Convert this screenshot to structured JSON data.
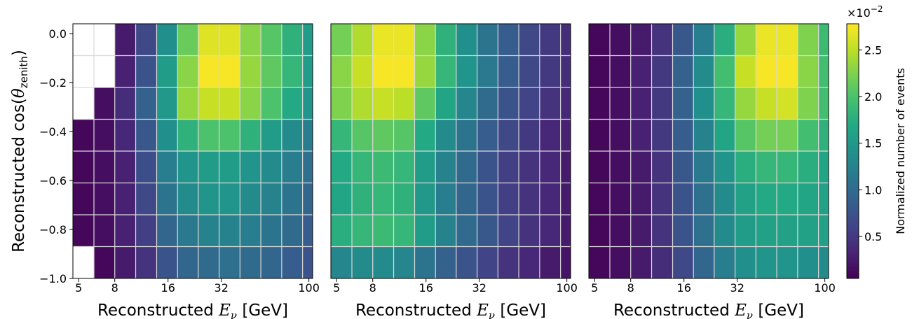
{
  "chart_data": {
    "type": "heatmap",
    "y_axis": {
      "label_prefix": "Reconstructed cos(",
      "label_symbol": "θ",
      "label_sub": "zenith",
      "label_suffix": ")",
      "range": [
        -1.0,
        0.04
      ],
      "ticks": [
        "0.0",
        "−0.2",
        "−0.4",
        "−0.6",
        "−0.8",
        "−1.0"
      ],
      "tick_values": [
        0.0,
        -0.2,
        -0.4,
        -0.6,
        -0.8,
        -1.0
      ],
      "bin_edges": [
        -1.0,
        -0.87,
        -0.74,
        -0.61,
        -0.48,
        -0.35,
        -0.22,
        -0.09,
        0.04
      ]
    },
    "x_axis": {
      "label_prefix": "Reconstructed ",
      "label_symbol": "E",
      "label_sub": "ν",
      "label_suffix": " [GeV]",
      "scale": "log",
      "range": [
        4.64,
        105
      ],
      "ticks": [
        "5",
        "8",
        "16",
        "32",
        "100"
      ],
      "tick_values": [
        5,
        8,
        16,
        32,
        100
      ],
      "bin_edges": [
        4.64,
        6.1,
        8.0,
        10.5,
        13.8,
        18.1,
        23.7,
        31.1,
        40.8,
        53.5,
        70.2,
        92.1,
        105
      ]
    },
    "colorbar": {
      "label": "Normalized number of events",
      "multiplier_base": "×10",
      "multiplier_exp": "−2",
      "ticks": [
        "0.5",
        "1.0",
        "1.5",
        "2.0",
        "2.5"
      ],
      "tick_values": [
        0.5,
        1.0,
        1.5,
        2.0,
        2.5
      ],
      "range": [
        0.05,
        2.78
      ]
    },
    "grid": true,
    "panels": [
      {
        "values": [
          [
            null,
            0.1,
            0.25,
            0.45,
            0.75,
            0.95,
            1.0,
            1.05,
            1.0,
            0.95,
            0.85,
            0.75
          ],
          [
            0.1,
            0.15,
            0.3,
            0.55,
            0.95,
            1.15,
            1.25,
            1.25,
            1.2,
            1.1,
            1.0,
            0.85
          ],
          [
            0.1,
            0.15,
            0.3,
            0.65,
            1.1,
            1.35,
            1.45,
            1.45,
            1.35,
            1.25,
            1.1,
            0.95
          ],
          [
            0.1,
            0.15,
            0.3,
            0.7,
            1.2,
            1.45,
            1.55,
            1.55,
            1.45,
            1.35,
            1.2,
            1.05
          ],
          [
            0.1,
            0.15,
            0.35,
            0.8,
            1.4,
            1.8,
            2.0,
            2.0,
            1.8,
            1.55,
            1.35,
            1.2
          ],
          [
            null,
            0.15,
            0.4,
            0.9,
            1.5,
            2.35,
            2.55,
            2.55,
            2.3,
            2.0,
            1.7,
            1.45
          ],
          [
            null,
            null,
            0.3,
            0.75,
            1.55,
            2.3,
            2.75,
            2.75,
            2.35,
            2.1,
            1.85,
            1.55
          ],
          [
            null,
            null,
            0.25,
            0.65,
            1.4,
            2.15,
            2.65,
            2.65,
            2.3,
            2.05,
            1.8,
            1.55
          ]
        ]
      },
      {
        "values": [
          [
            1.3,
            1.35,
            1.35,
            1.3,
            1.1,
            0.9,
            0.75,
            0.6,
            0.45,
            0.35,
            0.25,
            0.2
          ],
          [
            1.75,
            1.85,
            1.9,
            1.85,
            1.55,
            1.25,
            1.0,
            0.8,
            0.6,
            0.45,
            0.35,
            0.25
          ],
          [
            1.65,
            1.8,
            1.85,
            1.8,
            1.5,
            1.2,
            0.95,
            0.75,
            0.55,
            0.45,
            0.35,
            0.25
          ],
          [
            1.7,
            1.85,
            1.9,
            1.85,
            1.55,
            1.25,
            1.0,
            0.75,
            0.55,
            0.45,
            0.35,
            0.25
          ],
          [
            1.85,
            2.05,
            2.1,
            2.05,
            1.7,
            1.35,
            1.1,
            0.85,
            0.65,
            0.5,
            0.35,
            0.3
          ],
          [
            2.25,
            2.45,
            2.55,
            2.5,
            2.1,
            1.65,
            1.3,
            1.0,
            0.75,
            0.6,
            0.45,
            0.35
          ],
          [
            2.3,
            2.55,
            2.75,
            2.75,
            2.35,
            1.85,
            1.45,
            1.15,
            0.85,
            0.65,
            0.5,
            0.4
          ],
          [
            2.2,
            2.45,
            2.7,
            2.7,
            2.3,
            1.8,
            1.4,
            1.1,
            0.85,
            0.65,
            0.5,
            0.4
          ]
        ]
      },
      {
        "values": [
          [
            0.1,
            0.15,
            0.25,
            0.4,
            0.65,
            0.95,
            1.2,
            1.4,
            1.45,
            1.45,
            1.4,
            1.35
          ],
          [
            0.1,
            0.15,
            0.25,
            0.45,
            0.75,
            1.05,
            1.35,
            1.55,
            1.6,
            1.6,
            1.6,
            1.6
          ],
          [
            0.1,
            0.15,
            0.25,
            0.45,
            0.75,
            1.05,
            1.35,
            1.6,
            1.7,
            1.7,
            1.65,
            1.6
          ],
          [
            0.1,
            0.15,
            0.25,
            0.45,
            0.8,
            1.15,
            1.45,
            1.75,
            1.85,
            1.85,
            1.75,
            1.65
          ],
          [
            0.1,
            0.15,
            0.3,
            0.5,
            0.85,
            1.25,
            1.65,
            2.05,
            2.2,
            2.2,
            1.95,
            1.8
          ],
          [
            0.1,
            0.15,
            0.3,
            0.5,
            0.9,
            1.4,
            1.85,
            2.35,
            2.55,
            2.6,
            2.25,
            1.95
          ],
          [
            0.1,
            0.15,
            0.3,
            0.5,
            0.9,
            1.35,
            1.95,
            2.55,
            2.75,
            2.75,
            2.3,
            1.95
          ],
          [
            0.1,
            0.15,
            0.25,
            0.45,
            0.8,
            1.2,
            1.75,
            2.35,
            2.7,
            2.7,
            2.25,
            1.9
          ]
        ]
      }
    ]
  }
}
